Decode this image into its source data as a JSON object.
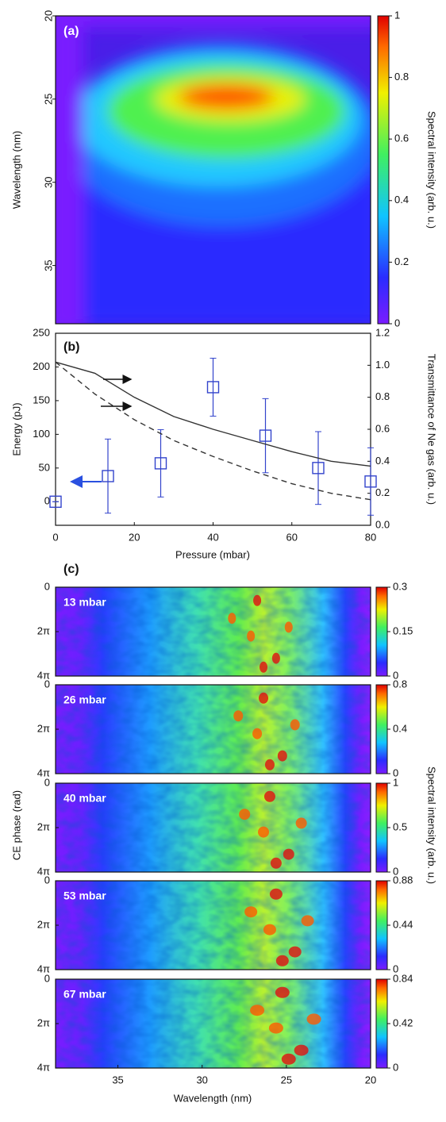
{
  "chart_data": [
    {
      "type": "heatmap",
      "label": "(a)",
      "ylabel": "Wavelength (nm)",
      "ylim": [
        20,
        38.5
      ],
      "yticks": [
        20,
        25,
        30,
        35
      ],
      "colorbar": {
        "clim": [
          0,
          1
        ],
        "cticks": [
          0,
          0.2,
          0.4,
          0.6,
          0.8,
          1
        ],
        "label": "Spectral intensity (arb. u.)"
      }
    },
    {
      "type": "scatter",
      "label": "(b)",
      "xlabel": "Pressure (mbar)",
      "ylabel": "Energy (pJ)",
      "y2label": "Transmittance of Ne gas (arb. u.)",
      "xlim": [
        0,
        80
      ],
      "xticks": [
        0,
        20,
        40,
        60,
        80
      ],
      "ylim": [
        -35,
        250
      ],
      "yticks": [
        0,
        50,
        100,
        150,
        200,
        250
      ],
      "y2lim": [
        0,
        1.2
      ],
      "y2ticks": [
        {
          "value": 0,
          "label": "0.0"
        },
        0.2,
        0.4,
        0.6,
        0.8,
        {
          "value": 1,
          "label": "1.0"
        },
        1.2
      ],
      "series": [
        {
          "type": "scatter",
          "color": "#3344cc",
          "x": [
            0,
            13.3,
            26.7,
            40,
            53.3,
            66.7,
            80
          ],
          "values": [
            0,
            38,
            57,
            170,
            98,
            50,
            30
          ],
          "errors": [
            0,
            55,
            50,
            43,
            55,
            54,
            50
          ]
        },
        {
          "type": "line",
          "axis": "y2",
          "color": "#333333",
          "dash": false,
          "x": [
            0,
            10,
            20,
            30,
            40,
            50,
            60,
            70,
            80
          ],
          "values": [
            1.02,
            0.95,
            0.8,
            0.68,
            0.6,
            0.53,
            0.46,
            0.4,
            0.37
          ]
        },
        {
          "type": "line",
          "axis": "y2",
          "color": "#333333",
          "dash": true,
          "x": [
            0,
            10,
            20,
            30,
            40,
            50,
            60,
            70,
            80
          ],
          "values": [
            1.02,
            0.82,
            0.66,
            0.53,
            0.43,
            0.34,
            0.26,
            0.2,
            0.16
          ]
        }
      ]
    },
    {
      "type": "heatmap",
      "label": "(c)",
      "xlabel": "Wavelength (nm)",
      "ylabel": "CE phase (rad)",
      "colorbar_label": "Spectral intensity (arb. u.)",
      "xlim": [
        38.7,
        20
      ],
      "xticks": [
        35,
        30,
        25,
        20
      ],
      "ylim": [
        0,
        12.566
      ],
      "yticks": [
        0,
        {
          "value": 6.283,
          "label": "2π"
        },
        {
          "value": 12.566,
          "label": "4π"
        }
      ],
      "panels": [
        {
          "label": "13 mbar",
          "clim": [
            0,
            0.3
          ],
          "cticks": [
            0,
            0.15,
            0.3
          ]
        },
        {
          "label": "26 mbar",
          "clim": [
            0,
            0.8
          ],
          "cticks": [
            0,
            0.4,
            0.8
          ]
        },
        {
          "label": "40 mbar",
          "clim": [
            0,
            1
          ],
          "cticks": [
            0,
            0.5,
            1
          ]
        },
        {
          "label": "53 mbar",
          "clim": [
            0,
            0.88
          ],
          "cticks": [
            0,
            0.44,
            0.88
          ]
        },
        {
          "label": "67 mbar",
          "clim": [
            0,
            0.84
          ],
          "cticks": [
            0,
            0.42,
            0.84
          ]
        }
      ]
    }
  ]
}
